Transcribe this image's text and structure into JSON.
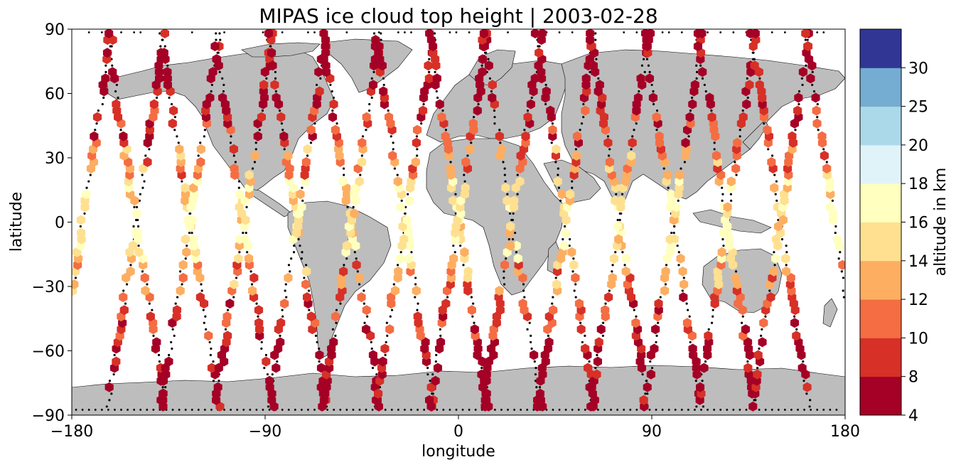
{
  "chart_data": {
    "type": "scatter",
    "title": "MIPAS ice cloud top height | 2003-02-28",
    "xlabel": "longitude",
    "ylabel": "latitude",
    "xlim": [
      -180,
      180
    ],
    "ylim": [
      -90,
      90
    ],
    "x_ticks": [
      "−180",
      "−90",
      "0",
      "90",
      "180"
    ],
    "y_ticks": [
      "90",
      "60",
      "30",
      "0",
      "−30",
      "−60",
      "−90"
    ],
    "x_tick_values": [
      -180,
      -90,
      0,
      90,
      180
    ],
    "y_tick_values": [
      90,
      60,
      30,
      0,
      -30,
      -60,
      -90
    ],
    "marker": "hexagon",
    "land_color": "#bdbdbd",
    "colorbar": {
      "label": "altitude in km",
      "boundaries": [
        4,
        8,
        10,
        12,
        14,
        16,
        18,
        20,
        25,
        30
      ],
      "tick_labels": [
        "4",
        "8",
        "10",
        "12",
        "14",
        "16",
        "18",
        "20",
        "25",
        "30"
      ],
      "colors": [
        "#a50026",
        "#d73027",
        "#f46d43",
        "#fdae61",
        "#fee090",
        "#ffffbf",
        "#e0f3f8",
        "#abd9e9",
        "#74add1",
        "#313695"
      ]
    },
    "orbit_tracks": [
      {
        "lon0": -175,
        "dir": 1
      },
      {
        "lon0": -150,
        "dir": -1
      },
      {
        "lon0": -150,
        "dir": 1
      },
      {
        "lon0": -125,
        "dir": -1
      },
      {
        "lon0": -125,
        "dir": 1
      },
      {
        "lon0": -100,
        "dir": -1
      },
      {
        "lon0": -100,
        "dir": 1
      },
      {
        "lon0": -75,
        "dir": -1
      },
      {
        "lon0": -75,
        "dir": 1
      },
      {
        "lon0": -50,
        "dir": -1
      },
      {
        "lon0": -50,
        "dir": 1
      },
      {
        "lon0": -25,
        "dir": -1
      },
      {
        "lon0": -25,
        "dir": 1
      },
      {
        "lon0": 0,
        "dir": -1
      },
      {
        "lon0": 0,
        "dir": 1
      },
      {
        "lon0": 25,
        "dir": -1
      },
      {
        "lon0": 25,
        "dir": 1
      },
      {
        "lon0": 50,
        "dir": -1
      },
      {
        "lon0": 50,
        "dir": 1
      },
      {
        "lon0": 75,
        "dir": -1
      },
      {
        "lon0": 75,
        "dir": 1
      },
      {
        "lon0": 100,
        "dir": -1
      },
      {
        "lon0": 100,
        "dir": 1
      },
      {
        "lon0": 125,
        "dir": -1
      },
      {
        "lon0": 125,
        "dir": 1
      },
      {
        "lon0": 150,
        "dir": -1
      },
      {
        "lon0": 150,
        "dir": 1
      },
      {
        "lon0": 175,
        "dir": -1
      }
    ]
  }
}
